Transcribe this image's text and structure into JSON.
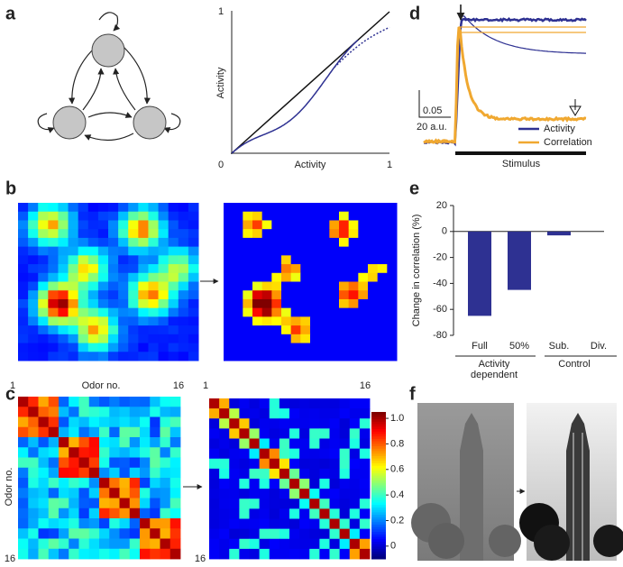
{
  "panel_labels": [
    "a",
    "b",
    "c",
    "d",
    "e",
    "f"
  ],
  "panel_a": {
    "x_label": "Activity",
    "y_label": "Activity",
    "x_tick_start": "0",
    "x_tick_end": "1",
    "y_tick_end": "1"
  },
  "panel_c": {
    "left_top_start": "1",
    "x_label": "Odor no.",
    "left_top_end": "16",
    "y_label": "Odor no.",
    "left_bottom": "16",
    "right_top_start": "1",
    "right_top_end": "16",
    "right_bottom": "16",
    "colorbar": {
      "ylim": [
        -0.1,
        1.05
      ],
      "yticks": [
        0,
        0.2,
        0.4,
        0.6,
        0.8,
        {
          "value": 1,
          "label": "1.0"
        }
      ]
    }
  },
  "panel_d": {
    "scale_y": "0.05",
    "scale_x": "20 a.u.",
    "legend": [
      {
        "name": "Activity",
        "color": "#2e3192"
      },
      {
        "name": "Correlation",
        "color": "#f0a830"
      }
    ],
    "stimulus": "Stimulus"
  },
  "chart_data": {
    "type": "bar",
    "y_label": "Change in correlation (%)",
    "categories": [
      "Full",
      "50%",
      "Sub.",
      "Div."
    ],
    "values": [
      -65,
      -45,
      -3,
      0
    ],
    "color": "#2e3192",
    "ylim": [
      -80,
      20
    ],
    "yticks": [
      20,
      0,
      -20,
      -40,
      -60,
      -80
    ],
    "groups": [
      "Activity dependent",
      "Control"
    ]
  }
}
